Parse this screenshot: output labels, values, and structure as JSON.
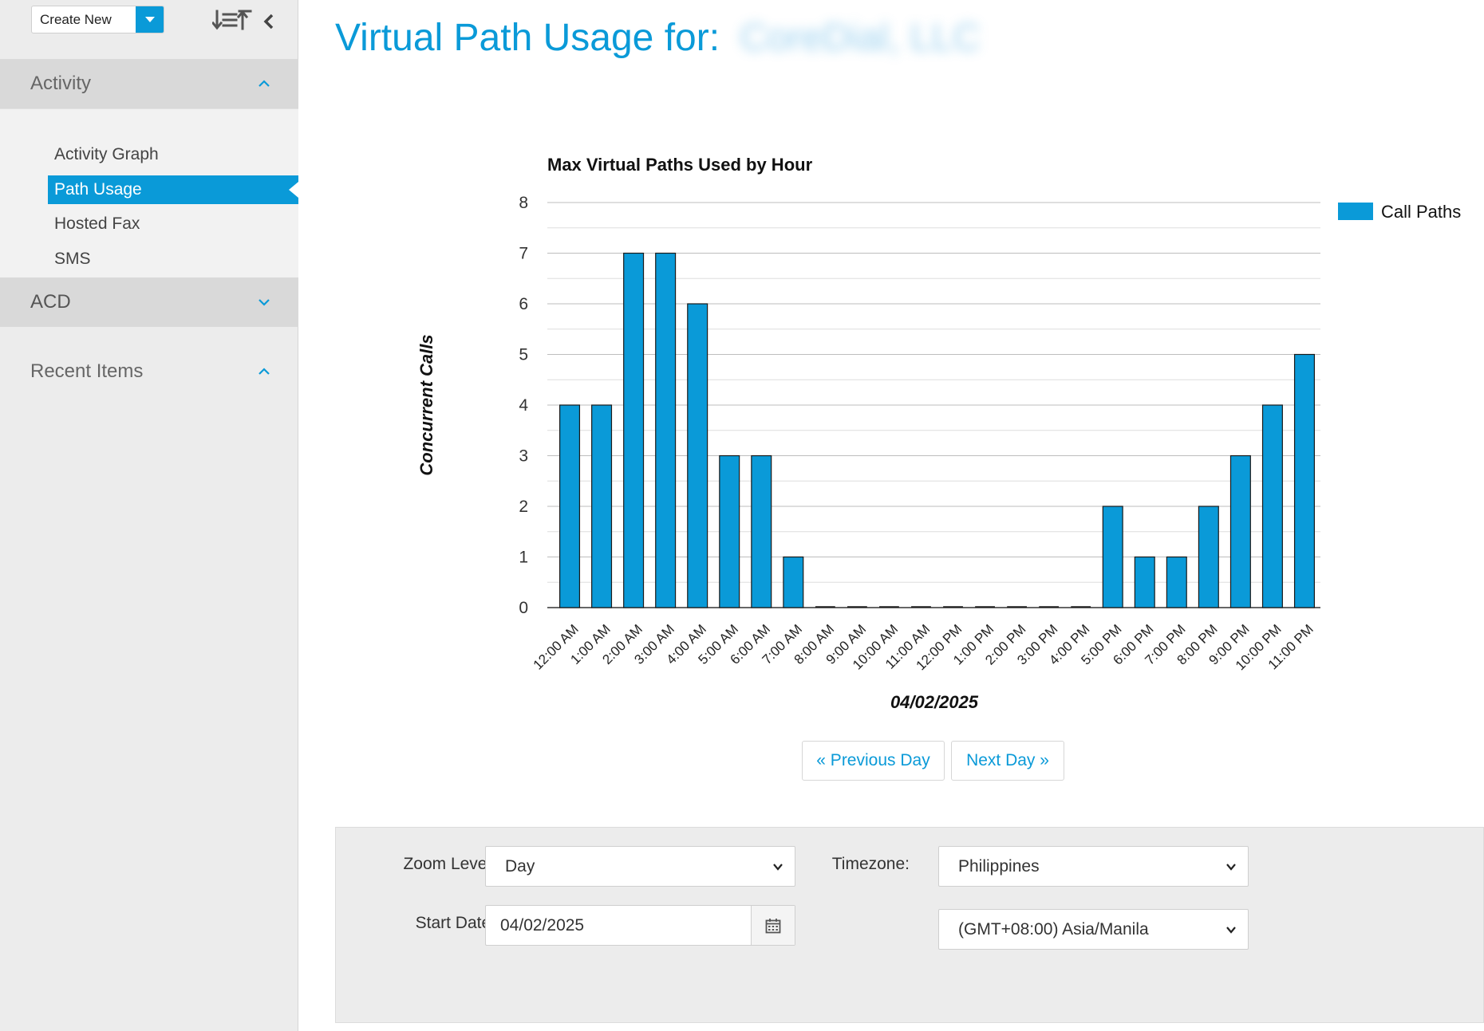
{
  "sidebar": {
    "create_new_label": "Create New",
    "sections": {
      "activity": {
        "label": "Activity",
        "items": [
          "Activity Graph",
          "Path Usage",
          "Hosted Fax",
          "SMS"
        ],
        "active": "Path Usage"
      },
      "acd": {
        "label": "ACD"
      },
      "recent": {
        "label": "Recent Items"
      }
    }
  },
  "page": {
    "title_prefix": "Virtual Path Usage for:",
    "account_name_blurred": "CoreDial, LLC"
  },
  "chart_data": {
    "type": "bar",
    "title": "Max Virtual Paths Used by Hour",
    "xlabel": "04/02/2025",
    "ylabel": "Concurrent Calls",
    "ylim": [
      0,
      8
    ],
    "yticks": [
      0,
      1,
      2,
      3,
      4,
      5,
      6,
      7,
      8
    ],
    "grid": true,
    "legend_position": "top-right",
    "categories": [
      "12:00 AM",
      "1:00 AM",
      "2:00 AM",
      "3:00 AM",
      "4:00 AM",
      "5:00 AM",
      "6:00 AM",
      "7:00 AM",
      "8:00 AM",
      "9:00 AM",
      "10:00 AM",
      "11:00 AM",
      "12:00 PM",
      "1:00 PM",
      "2:00 PM",
      "3:00 PM",
      "4:00 PM",
      "5:00 PM",
      "6:00 PM",
      "7:00 PM",
      "8:00 PM",
      "9:00 PM",
      "10:00 PM",
      "11:00 PM"
    ],
    "series": [
      {
        "name": "Call Paths",
        "color": "#0a9ad8",
        "values": [
          4,
          4,
          7,
          7,
          6,
          3,
          3,
          1,
          0,
          0,
          0,
          0,
          0,
          0,
          0,
          0,
          0,
          2,
          1,
          1,
          2,
          3,
          4,
          5
        ]
      }
    ]
  },
  "pager": {
    "previous_label": "« Previous Day",
    "next_label": "Next Day »"
  },
  "filters": {
    "zoom_level_label": "Zoom Level:",
    "zoom_level_value": "Day",
    "timezone_label": "Timezone:",
    "timezone_region_value": "Philippines",
    "timezone_zone_value": "(GMT+08:00) Asia/Manila",
    "start_date_label": "Start Date:",
    "start_date_value": "04/02/2025"
  },
  "icons": {
    "sort": "sort-icon",
    "collapse": "chevron-left-icon",
    "calendar": "calendar-icon",
    "dropdown": "chevron-down-icon"
  },
  "colors": {
    "accent": "#0a9ad8",
    "sidebar_bg": "#ececec"
  }
}
